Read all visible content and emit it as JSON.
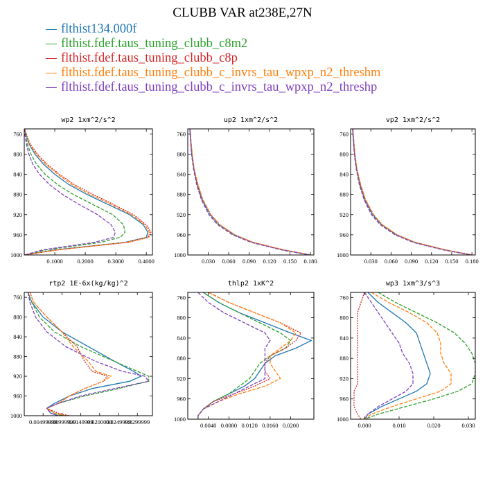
{
  "title": "CLUBB VAR at238E,27N",
  "legend": [
    {
      "label": "flthist134.000f",
      "color": "#1f77b4"
    },
    {
      "label": "flthist.fdef.taus_tuning_clubb_c8m2",
      "color": "#2ca02c"
    },
    {
      "label": "flthist.fdef.taus_tuning_clubb_c8p",
      "color": "#d62728"
    },
    {
      "label": "flthist.fdef.taus_tuning_clubb_c_invrs_tau_wpxp_n2_threshm",
      "color": "#ff7f0e"
    },
    {
      "label": "flthist.fdef.taus_tuning_clubb_c_invrs_tau_wpxp_n2_threshp",
      "color": "#7f3fbf"
    }
  ],
  "chart_data": [
    {
      "type": "line",
      "title": "wp2  1xm^2/s^2",
      "xlim": [
        0,
        0.42
      ],
      "ylim": [
        1000,
        750
      ],
      "xticks": [
        0.1,
        0.2,
        0.3,
        0.4
      ],
      "xtick_labels": [
        "0.1000",
        "0.2000",
        "0.3000",
        "0.4000"
      ],
      "yticks": [
        760,
        800,
        840,
        880,
        920,
        960,
        1000
      ],
      "y": [
        750,
        760,
        780,
        800,
        820,
        840,
        860,
        880,
        900,
        920,
        940,
        955,
        965,
        975,
        990,
        1000
      ],
      "series": [
        {
          "values": [
            0.002,
            0.005,
            0.016,
            0.035,
            0.063,
            0.1,
            0.145,
            0.205,
            0.275,
            0.345,
            0.39,
            0.405,
            0.4,
            0.33,
            0.1,
            0.001
          ]
        },
        {
          "values": [
            0.001,
            0.003,
            0.01,
            0.022,
            0.04,
            0.068,
            0.108,
            0.16,
            0.225,
            0.29,
            0.325,
            0.33,
            0.315,
            0.25,
            0.07,
            0.001
          ]
        },
        {
          "values": [
            0.002,
            0.006,
            0.02,
            0.043,
            0.075,
            0.115,
            0.163,
            0.225,
            0.293,
            0.358,
            0.4,
            0.415,
            0.408,
            0.34,
            0.11,
            0.001
          ]
        },
        {
          "values": [
            0.002,
            0.006,
            0.018,
            0.04,
            0.07,
            0.11,
            0.155,
            0.215,
            0.285,
            0.352,
            0.395,
            0.41,
            0.405,
            0.335,
            0.105,
            0.001
          ]
        },
        {
          "values": [
            0.001,
            0.002,
            0.007,
            0.015,
            0.028,
            0.05,
            0.082,
            0.125,
            0.18,
            0.24,
            0.285,
            0.298,
            0.293,
            0.23,
            0.06,
            0.001
          ]
        }
      ]
    },
    {
      "type": "line",
      "title": "up2  1xm^2/s^2",
      "xlim": [
        0,
        0.185
      ],
      "ylim": [
        1000,
        750
      ],
      "xticks": [
        0.03,
        0.06,
        0.09,
        0.12,
        0.15,
        0.18
      ],
      "xtick_labels": [
        "0.030",
        "0.060",
        "0.090",
        "0.120",
        "0.150",
        "0.180"
      ],
      "yticks": [
        760,
        800,
        840,
        880,
        920,
        960,
        1000
      ],
      "y": [
        750,
        770,
        800,
        830,
        860,
        890,
        920,
        940,
        960,
        975,
        990,
        1000
      ],
      "series": [
        {
          "values": [
            0.003,
            0.004,
            0.006,
            0.009,
            0.014,
            0.021,
            0.033,
            0.046,
            0.068,
            0.095,
            0.14,
            0.18
          ]
        },
        {
          "values": [
            0.003,
            0.004,
            0.0055,
            0.0085,
            0.013,
            0.02,
            0.031,
            0.044,
            0.066,
            0.093,
            0.138,
            0.179
          ]
        },
        {
          "values": [
            0.0035,
            0.0045,
            0.0065,
            0.0095,
            0.0145,
            0.022,
            0.034,
            0.047,
            0.069,
            0.096,
            0.141,
            0.18
          ]
        },
        {
          "values": [
            0.0035,
            0.0045,
            0.0065,
            0.0095,
            0.015,
            0.022,
            0.034,
            0.047,
            0.069,
            0.096,
            0.141,
            0.18
          ]
        },
        {
          "values": [
            0.003,
            0.004,
            0.0055,
            0.0085,
            0.013,
            0.02,
            0.031,
            0.044,
            0.066,
            0.093,
            0.138,
            0.179
          ]
        }
      ]
    },
    {
      "type": "line",
      "title": "vp2  1xm^2/s^2",
      "xlim": [
        0,
        0.185
      ],
      "ylim": [
        1000,
        750
      ],
      "xticks": [
        0.03,
        0.06,
        0.09,
        0.12,
        0.15,
        0.18
      ],
      "xtick_labels": [
        "0.030",
        "0.060",
        "0.090",
        "0.120",
        "0.150",
        "0.180"
      ],
      "yticks": [
        760,
        800,
        840,
        880,
        920,
        960,
        1000
      ],
      "y": [
        750,
        770,
        800,
        830,
        860,
        890,
        920,
        940,
        960,
        975,
        990,
        1000
      ],
      "series": [
        {
          "values": [
            0.003,
            0.004,
            0.006,
            0.009,
            0.014,
            0.021,
            0.033,
            0.046,
            0.068,
            0.095,
            0.14,
            0.18
          ]
        },
        {
          "values": [
            0.003,
            0.004,
            0.0055,
            0.0085,
            0.013,
            0.02,
            0.031,
            0.044,
            0.066,
            0.093,
            0.138,
            0.179
          ]
        },
        {
          "values": [
            0.0035,
            0.0045,
            0.0065,
            0.0095,
            0.0145,
            0.022,
            0.034,
            0.047,
            0.069,
            0.096,
            0.141,
            0.18
          ]
        },
        {
          "values": [
            0.0035,
            0.0045,
            0.0065,
            0.0095,
            0.015,
            0.022,
            0.034,
            0.047,
            0.069,
            0.096,
            0.141,
            0.18
          ]
        },
        {
          "values": [
            0.003,
            0.004,
            0.0055,
            0.0085,
            0.013,
            0.02,
            0.031,
            0.044,
            0.066,
            0.093,
            0.138,
            0.179
          ]
        }
      ]
    },
    {
      "type": "line",
      "title": "rtp2  1E-6x(kg/kg)^2",
      "xlim": [
        0,
        0.034
      ],
      "ylim": [
        1000,
        750
      ],
      "xticks": [
        0.005,
        0.01,
        0.015,
        0.02,
        0.025,
        0.03
      ],
      "xtick_labels": [
        "0.00499999",
        "0.00999999",
        "0.0149999",
        "0.0200000",
        "0.0249999",
        "0.0299999"
      ],
      "yticks": [
        760,
        800,
        840,
        880,
        920,
        960,
        1000
      ],
      "y": [
        750,
        770,
        800,
        830,
        860,
        890,
        910,
        920,
        930,
        945,
        960,
        975,
        985,
        995,
        1000
      ],
      "series": [
        {
          "values": [
            0.001,
            0.002,
            0.005,
            0.01,
            0.017,
            0.024,
            0.029,
            0.031,
            0.028,
            0.018,
            0.012,
            0.008,
            0.006,
            0.007,
            0.009
          ]
        },
        {
          "values": [
            0.001,
            0.002,
            0.004,
            0.008,
            0.015,
            0.024,
            0.03,
            0.033,
            0.033,
            0.025,
            0.016,
            0.009,
            0.006,
            0.008,
            0.01
          ]
        },
        {
          "values": [
            0.0015,
            0.0025,
            0.006,
            0.01,
            0.014,
            0.016,
            0.018,
            0.022,
            0.021,
            0.016,
            0.012,
            0.009,
            0.006,
            0.009,
            0.012
          ]
        },
        {
          "values": [
            0.0015,
            0.0025,
            0.006,
            0.01,
            0.013,
            0.017,
            0.019,
            0.023,
            0.021,
            0.016,
            0.012,
            0.009,
            0.006,
            0.008,
            0.011
          ]
        },
        {
          "values": [
            0.001,
            0.0015,
            0.003,
            0.006,
            0.011,
            0.019,
            0.026,
            0.032,
            0.033,
            0.024,
            0.015,
            0.009,
            0.006,
            0.007,
            0.009
          ]
        }
      ]
    },
    {
      "type": "line",
      "title": "thlp2  1xK^2",
      "xlim": [
        0,
        0.0245
      ],
      "ylim": [
        1000,
        750
      ],
      "xticks": [
        0.004,
        0.008,
        0.012,
        0.016,
        0.02
      ],
      "xtick_labels": [
        "0.0040",
        "0.0080",
        "0.0120",
        "0.0160",
        "0.0200"
      ],
      "yticks": [
        760,
        800,
        840,
        880,
        920,
        960,
        1000
      ],
      "y": [
        750,
        770,
        790,
        810,
        830,
        845,
        860,
        875,
        890,
        905,
        920,
        935,
        950,
        965,
        980,
        993,
        1000
      ],
      "series": [
        {
          "values": [
            0.003,
            0.006,
            0.01,
            0.015,
            0.02,
            0.024,
            0.021,
            0.017,
            0.015,
            0.014,
            0.013,
            0.011,
            0.008,
            0.005,
            0.003,
            0.002,
            0.002
          ]
        },
        {
          "values": [
            0.003,
            0.006,
            0.01,
            0.014,
            0.018,
            0.02,
            0.019,
            0.016,
            0.014,
            0.013,
            0.012,
            0.01,
            0.008,
            0.005,
            0.003,
            0.002,
            0.002
          ]
        },
        {
          "values": [
            0.004,
            0.008,
            0.013,
            0.018,
            0.022,
            0.021,
            0.019,
            0.016,
            0.015,
            0.015,
            0.016,
            0.013,
            0.009,
            0.005,
            0.003,
            0.002,
            0.002
          ]
        },
        {
          "values": [
            0.004,
            0.008,
            0.013,
            0.018,
            0.021,
            0.02,
            0.018,
            0.016,
            0.016,
            0.017,
            0.018,
            0.015,
            0.01,
            0.006,
            0.003,
            0.002,
            0.002
          ]
        },
        {
          "values": [
            0.002,
            0.004,
            0.007,
            0.011,
            0.015,
            0.016,
            0.015,
            0.015,
            0.015,
            0.015,
            0.015,
            0.012,
            0.009,
            0.006,
            0.003,
            0.002,
            0.002
          ]
        }
      ]
    },
    {
      "type": "line",
      "title": "wp3  1xm^3/s^3",
      "xlim": [
        -0.004,
        0.032
      ],
      "ylim": [
        1000,
        750
      ],
      "xticks": [
        0.0,
        0.01,
        0.02,
        0.03
      ],
      "xtick_labels": [
        "0.000",
        "0.010",
        "0.020",
        "0.030"
      ],
      "yticks": [
        760,
        800,
        840,
        880,
        920,
        960,
        1000
      ],
      "y": [
        750,
        770,
        790,
        810,
        830,
        850,
        870,
        890,
        910,
        930,
        945,
        960,
        975,
        990,
        1000
      ],
      "series": [
        {
          "values": [
            0.001,
            0.004,
            0.008,
            0.012,
            0.015,
            0.016,
            0.017,
            0.018,
            0.019,
            0.018,
            0.015,
            0.01,
            0.005,
            0.001,
            0.0
          ]
        },
        {
          "values": [
            0.004,
            0.009,
            0.015,
            0.021,
            0.026,
            0.029,
            0.031,
            0.032,
            0.032,
            0.031,
            0.027,
            0.02,
            0.012,
            0.004,
            0.0
          ]
        },
        {
          "values": [
            0.0,
            -0.001,
            -0.002,
            -0.002,
            -0.002,
            -0.002,
            -0.002,
            -0.002,
            -0.002,
            -0.002,
            -0.003,
            -0.003,
            -0.003,
            -0.002,
            -0.001
          ]
        },
        {
          "values": [
            0.002,
            0.007,
            0.013,
            0.018,
            0.021,
            0.022,
            0.022,
            0.023,
            0.025,
            0.025,
            0.022,
            0.015,
            0.008,
            0.002,
            0.0
          ]
        },
        {
          "values": [
            0.0,
            0.002,
            0.004,
            0.006,
            0.008,
            0.01,
            0.011,
            0.013,
            0.014,
            0.014,
            0.012,
            0.008,
            0.004,
            0.001,
            0.0
          ]
        }
      ]
    }
  ]
}
